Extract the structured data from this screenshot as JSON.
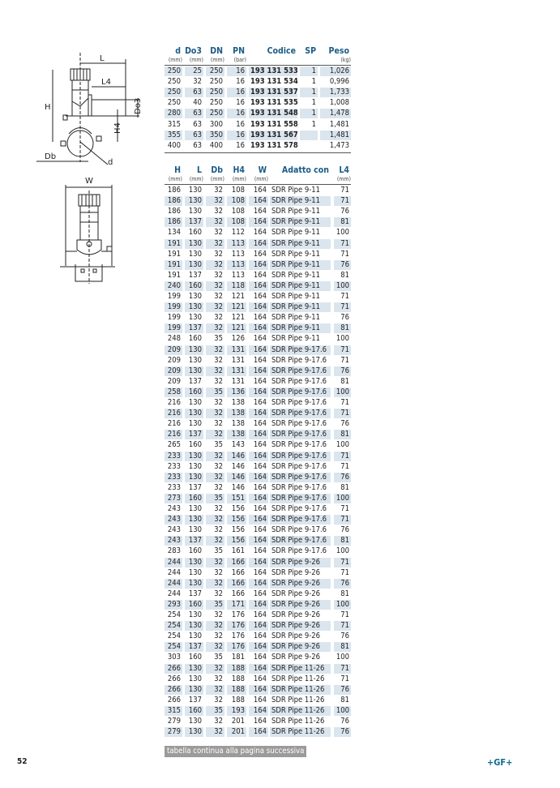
{
  "drawing_labels": {
    "L": "L",
    "L4": "L4",
    "H": "H",
    "Do3": "Do3",
    "H4": "H4",
    "Db": "Db",
    "d": "d",
    "W": "W"
  },
  "table1": {
    "columns": [
      {
        "label": "d",
        "unit": "(mm)"
      },
      {
        "label": "Do3",
        "unit": "(mm)"
      },
      {
        "label": "DN",
        "unit": "(mm)"
      },
      {
        "label": "PN",
        "unit": "(bar)"
      },
      {
        "label": "Codice",
        "unit": ""
      },
      {
        "label": "SP",
        "unit": ""
      },
      {
        "label": "Peso",
        "unit": "(kg)"
      }
    ],
    "rows": [
      [
        "250",
        "25",
        "250",
        "16",
        "193 131 533",
        "1",
        "1,026"
      ],
      [
        "250",
        "32",
        "250",
        "16",
        "193 131 534",
        "1",
        "0,996"
      ],
      [
        "250",
        "63",
        "250",
        "16",
        "193 131 537",
        "1",
        "1,733"
      ],
      [
        "250",
        "40",
        "250",
        "16",
        "193 131 535",
        "1",
        "1,008"
      ],
      [
        "280",
        "63",
        "250",
        "16",
        "193 131 548",
        "1",
        "1,478"
      ],
      [
        "315",
        "63",
        "300",
        "16",
        "193 131 558",
        "1",
        "1,481"
      ],
      [
        "355",
        "63",
        "350",
        "16",
        "193 131 567",
        "",
        "1,481"
      ],
      [
        "400",
        "63",
        "400",
        "16",
        "193 131 578",
        "",
        "1,473"
      ]
    ]
  },
  "table2": {
    "columns": [
      {
        "label": "H",
        "unit": "(mm)"
      },
      {
        "label": "L",
        "unit": "(mm)"
      },
      {
        "label": "Db",
        "unit": "(mm)"
      },
      {
        "label": "H4",
        "unit": "(mm)"
      },
      {
        "label": "W",
        "unit": "(mm)"
      },
      {
        "label": "Adatto con",
        "unit": ""
      },
      {
        "label": "L4",
        "unit": "(mm)"
      }
    ],
    "rows": [
      [
        "186",
        "130",
        "32",
        "108",
        "164",
        "SDR Pipe 9-11",
        "71"
      ],
      [
        "186",
        "130",
        "32",
        "108",
        "164",
        "SDR Pipe 9-11",
        "71"
      ],
      [
        "186",
        "130",
        "32",
        "108",
        "164",
        "SDR Pipe 9-11",
        "76"
      ],
      [
        "186",
        "137",
        "32",
        "108",
        "164",
        "SDR Pipe 9-11",
        "81"
      ],
      [
        "134",
        "160",
        "32",
        "112",
        "164",
        "SDR Pipe 9-11",
        "100"
      ],
      [
        "191",
        "130",
        "32",
        "113",
        "164",
        "SDR Pipe 9-11",
        "71"
      ],
      [
        "191",
        "130",
        "32",
        "113",
        "164",
        "SDR Pipe 9-11",
        "71"
      ],
      [
        "191",
        "130",
        "32",
        "113",
        "164",
        "SDR Pipe 9-11",
        "76"
      ],
      [
        "191",
        "137",
        "32",
        "113",
        "164",
        "SDR Pipe 9-11",
        "81"
      ],
      [
        "240",
        "160",
        "32",
        "118",
        "164",
        "SDR Pipe 9-11",
        "100"
      ],
      [
        "199",
        "130",
        "32",
        "121",
        "164",
        "SDR Pipe 9-11",
        "71"
      ],
      [
        "199",
        "130",
        "32",
        "121",
        "164",
        "SDR Pipe 9-11",
        "71"
      ],
      [
        "199",
        "130",
        "32",
        "121",
        "164",
        "SDR Pipe 9-11",
        "76"
      ],
      [
        "199",
        "137",
        "32",
        "121",
        "164",
        "SDR Pipe 9-11",
        "81"
      ],
      [
        "248",
        "160",
        "35",
        "126",
        "164",
        "SDR Pipe 9-11",
        "100"
      ],
      [
        "209",
        "130",
        "32",
        "131",
        "164",
        "SDR Pipe 9-17.6",
        "71"
      ],
      [
        "209",
        "130",
        "32",
        "131",
        "164",
        "SDR Pipe 9-17.6",
        "71"
      ],
      [
        "209",
        "130",
        "32",
        "131",
        "164",
        "SDR Pipe 9-17.6",
        "76"
      ],
      [
        "209",
        "137",
        "32",
        "131",
        "164",
        "SDR Pipe 9-17.6",
        "81"
      ],
      [
        "258",
        "160",
        "35",
        "136",
        "164",
        "SDR Pipe 9-17.6",
        "100"
      ],
      [
        "216",
        "130",
        "32",
        "138",
        "164",
        "SDR Pipe 9-17.6",
        "71"
      ],
      [
        "216",
        "130",
        "32",
        "138",
        "164",
        "SDR Pipe 9-17.6",
        "71"
      ],
      [
        "216",
        "130",
        "32",
        "138",
        "164",
        "SDR Pipe 9-17.6",
        "76"
      ],
      [
        "216",
        "137",
        "32",
        "138",
        "164",
        "SDR Pipe 9-17.6",
        "81"
      ],
      [
        "265",
        "160",
        "35",
        "143",
        "164",
        "SDR Pipe 9-17.6",
        "100"
      ],
      [
        "233",
        "130",
        "32",
        "146",
        "164",
        "SDR Pipe 9-17.6",
        "71"
      ],
      [
        "233",
        "130",
        "32",
        "146",
        "164",
        "SDR Pipe 9-17.6",
        "71"
      ],
      [
        "233",
        "130",
        "32",
        "146",
        "164",
        "SDR Pipe 9-17.6",
        "76"
      ],
      [
        "233",
        "137",
        "32",
        "146",
        "164",
        "SDR Pipe 9-17.6",
        "81"
      ],
      [
        "273",
        "160",
        "35",
        "151",
        "164",
        "SDR Pipe 9-17.6",
        "100"
      ],
      [
        "243",
        "130",
        "32",
        "156",
        "164",
        "SDR Pipe 9-17.6",
        "71"
      ],
      [
        "243",
        "130",
        "32",
        "156",
        "164",
        "SDR Pipe 9-17.6",
        "71"
      ],
      [
        "243",
        "130",
        "32",
        "156",
        "164",
        "SDR Pipe 9-17.6",
        "76"
      ],
      [
        "243",
        "137",
        "32",
        "156",
        "164",
        "SDR Pipe 9-17.6",
        "81"
      ],
      [
        "283",
        "160",
        "35",
        "161",
        "164",
        "SDR Pipe 9-17.6",
        "100"
      ],
      [
        "244",
        "130",
        "32",
        "166",
        "164",
        "SDR Pipe 9-26",
        "71"
      ],
      [
        "244",
        "130",
        "32",
        "166",
        "164",
        "SDR Pipe 9-26",
        "71"
      ],
      [
        "244",
        "130",
        "32",
        "166",
        "164",
        "SDR Pipe 9-26",
        "76"
      ],
      [
        "244",
        "137",
        "32",
        "166",
        "164",
        "SDR Pipe 9-26",
        "81"
      ],
      [
        "293",
        "160",
        "35",
        "171",
        "164",
        "SDR Pipe 9-26",
        "100"
      ],
      [
        "254",
        "130",
        "32",
        "176",
        "164",
        "SDR Pipe 9-26",
        "71"
      ],
      [
        "254",
        "130",
        "32",
        "176",
        "164",
        "SDR Pipe 9-26",
        "71"
      ],
      [
        "254",
        "130",
        "32",
        "176",
        "164",
        "SDR Pipe 9-26",
        "76"
      ],
      [
        "254",
        "137",
        "32",
        "176",
        "164",
        "SDR Pipe 9-26",
        "81"
      ],
      [
        "303",
        "160",
        "35",
        "181",
        "164",
        "SDR Pipe 9-26",
        "100"
      ],
      [
        "266",
        "130",
        "32",
        "188",
        "164",
        "SDR Pipe 11-26",
        "71"
      ],
      [
        "266",
        "130",
        "32",
        "188",
        "164",
        "SDR Pipe 11-26",
        "71"
      ],
      [
        "266",
        "130",
        "32",
        "188",
        "164",
        "SDR Pipe 11-26",
        "76"
      ],
      [
        "266",
        "137",
        "32",
        "188",
        "164",
        "SDR Pipe 11-26",
        "81"
      ],
      [
        "315",
        "160",
        "35",
        "193",
        "164",
        "SDR Pipe 11-26",
        "100"
      ],
      [
        "279",
        "130",
        "32",
        "201",
        "164",
        "SDR Pipe 11-26",
        "76"
      ],
      [
        "279",
        "130",
        "32",
        "201",
        "164",
        "SDR Pipe 11-26",
        "76"
      ]
    ]
  },
  "footer": {
    "note": "tabella continua alla pagina successiva",
    "page_number": "52",
    "logo": "+GF+"
  },
  "colors": {
    "header": "#1b5b86",
    "shade": "#dbe5ee",
    "note_bg": "#9b9b9b",
    "logo": "#0d6b8e"
  }
}
